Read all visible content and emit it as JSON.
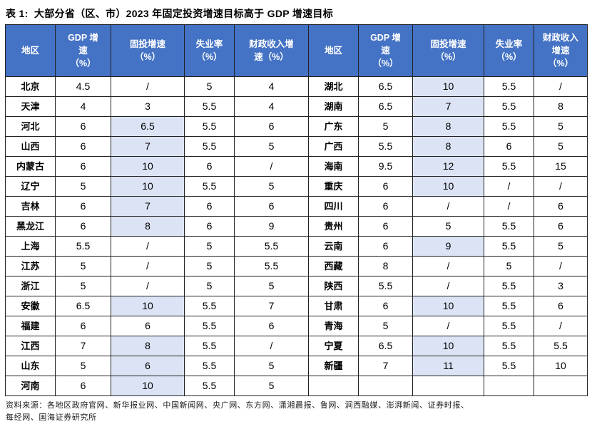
{
  "title": "表 1:  大部分省（区、市）2023 年固定投资增速目标高于 GDP 增速目标",
  "colors": {
    "header_bg": "#4472C4",
    "highlight_bg": "#DCE3F5",
    "border": "#212121"
  },
  "table": {
    "header": {
      "region": "地区",
      "gdp_lines": [
        "GDP 增",
        "速",
        "（%）"
      ],
      "fixed_lines": [
        "固投增速",
        "（%）"
      ],
      "unemployment_lines": [
        "失业率",
        "（%）"
      ],
      "fiscal_left_lines": [
        "财政收入增",
        "速（%）"
      ],
      "fiscal_right_lines": [
        "财政收入",
        "增速",
        "（%）"
      ]
    },
    "left_rows": [
      {
        "region": "北京",
        "gdp": "4.5",
        "fixed": "/",
        "fixed_hl": false,
        "unemployment": "5",
        "fiscal": "4"
      },
      {
        "region": "天津",
        "gdp": "4",
        "fixed": "3",
        "fixed_hl": false,
        "unemployment": "5.5",
        "fiscal": "4"
      },
      {
        "region": "河北",
        "gdp": "6",
        "fixed": "6.5",
        "fixed_hl": true,
        "unemployment": "5.5",
        "fiscal": "6"
      },
      {
        "region": "山西",
        "gdp": "6",
        "fixed": "7",
        "fixed_hl": true,
        "unemployment": "5.5",
        "fiscal": "5"
      },
      {
        "region": "内蒙古",
        "gdp": "6",
        "fixed": "10",
        "fixed_hl": true,
        "unemployment": "6",
        "fiscal": "/"
      },
      {
        "region": "辽宁",
        "gdp": "5",
        "fixed": "10",
        "fixed_hl": true,
        "unemployment": "5.5",
        "fiscal": "5"
      },
      {
        "region": "吉林",
        "gdp": "6",
        "fixed": "7",
        "fixed_hl": true,
        "unemployment": "6",
        "fiscal": "6"
      },
      {
        "region": "黑龙江",
        "gdp": "6",
        "fixed": "8",
        "fixed_hl": true,
        "unemployment": "6",
        "fiscal": "9"
      },
      {
        "region": "上海",
        "gdp": "5.5",
        "fixed": "/",
        "fixed_hl": false,
        "unemployment": "5",
        "fiscal": "5.5"
      },
      {
        "region": "江苏",
        "gdp": "5",
        "fixed": "/",
        "fixed_hl": false,
        "unemployment": "5",
        "fiscal": "5.5"
      },
      {
        "region": "浙江",
        "gdp": "5",
        "fixed": "/",
        "fixed_hl": false,
        "unemployment": "5",
        "fiscal": "5"
      },
      {
        "region": "安徽",
        "gdp": "6.5",
        "fixed": "10",
        "fixed_hl": true,
        "unemployment": "5.5",
        "fiscal": "7"
      },
      {
        "region": "福建",
        "gdp": "6",
        "fixed": "6",
        "fixed_hl": false,
        "unemployment": "5.5",
        "fiscal": "6"
      },
      {
        "region": "江西",
        "gdp": "7",
        "fixed": "8",
        "fixed_hl": true,
        "unemployment": "5.5",
        "fiscal": "/"
      },
      {
        "region": "山东",
        "gdp": "5",
        "fixed": "6",
        "fixed_hl": true,
        "unemployment": "5.5",
        "fiscal": "5"
      },
      {
        "region": "河南",
        "gdp": "6",
        "fixed": "10",
        "fixed_hl": true,
        "unemployment": "5.5",
        "fiscal": "5"
      }
    ],
    "right_rows": [
      {
        "region": "湖北",
        "gdp": "6.5",
        "fixed": "10",
        "fixed_hl": true,
        "unemployment": "5.5",
        "fiscal": "/"
      },
      {
        "region": "湖南",
        "gdp": "6.5",
        "fixed": "7",
        "fixed_hl": true,
        "unemployment": "5.5",
        "fiscal": "8"
      },
      {
        "region": "广东",
        "gdp": "5",
        "fixed": "8",
        "fixed_hl": true,
        "unemployment": "5.5",
        "fiscal": "5"
      },
      {
        "region": "广西",
        "gdp": "5.5",
        "fixed": "8",
        "fixed_hl": true,
        "unemployment": "6",
        "fiscal": "5"
      },
      {
        "region": "海南",
        "gdp": "9.5",
        "fixed": "12",
        "fixed_hl": true,
        "unemployment": "5.5",
        "fiscal": "15"
      },
      {
        "region": "重庆",
        "gdp": "6",
        "fixed": "10",
        "fixed_hl": true,
        "unemployment": "/",
        "fiscal": "/"
      },
      {
        "region": "四川",
        "gdp": "6",
        "fixed": "/",
        "fixed_hl": false,
        "unemployment": "/",
        "fiscal": "6"
      },
      {
        "region": "贵州",
        "gdp": "6",
        "fixed": "5",
        "fixed_hl": false,
        "unemployment": "5.5",
        "fiscal": "6"
      },
      {
        "region": "云南",
        "gdp": "6",
        "fixed": "9",
        "fixed_hl": true,
        "unemployment": "5.5",
        "fiscal": "5"
      },
      {
        "region": "西藏",
        "gdp": "8",
        "fixed": "/",
        "fixed_hl": false,
        "unemployment": "5",
        "fiscal": "/"
      },
      {
        "region": "陕西",
        "gdp": "5.5",
        "fixed": "/",
        "fixed_hl": false,
        "unemployment": "5.5",
        "fiscal": "3"
      },
      {
        "region": "甘肃",
        "gdp": "6",
        "fixed": "10",
        "fixed_hl": true,
        "unemployment": "5.5",
        "fiscal": "6"
      },
      {
        "region": "青海",
        "gdp": "5",
        "fixed": "/",
        "fixed_hl": false,
        "unemployment": "5.5",
        "fiscal": "/"
      },
      {
        "region": "宁夏",
        "gdp": "6.5",
        "fixed": "10",
        "fixed_hl": true,
        "unemployment": "5.5",
        "fiscal": "5.5"
      },
      {
        "region": "新疆",
        "gdp": "7",
        "fixed": "11",
        "fixed_hl": true,
        "unemployment": "5.5",
        "fiscal": "10"
      },
      {
        "region": "",
        "gdp": "",
        "fixed": "",
        "fixed_hl": false,
        "unemployment": "",
        "fiscal": ""
      }
    ]
  },
  "footer": {
    "line1": "资料来源：各地区政府官网、新华报业网、中国新闻网、央广网、东方网、潇湘晨报、鲁网、涧西融媒、澎湃新闻、证券时报、",
    "line2": "每经网、国海证券研究所"
  }
}
